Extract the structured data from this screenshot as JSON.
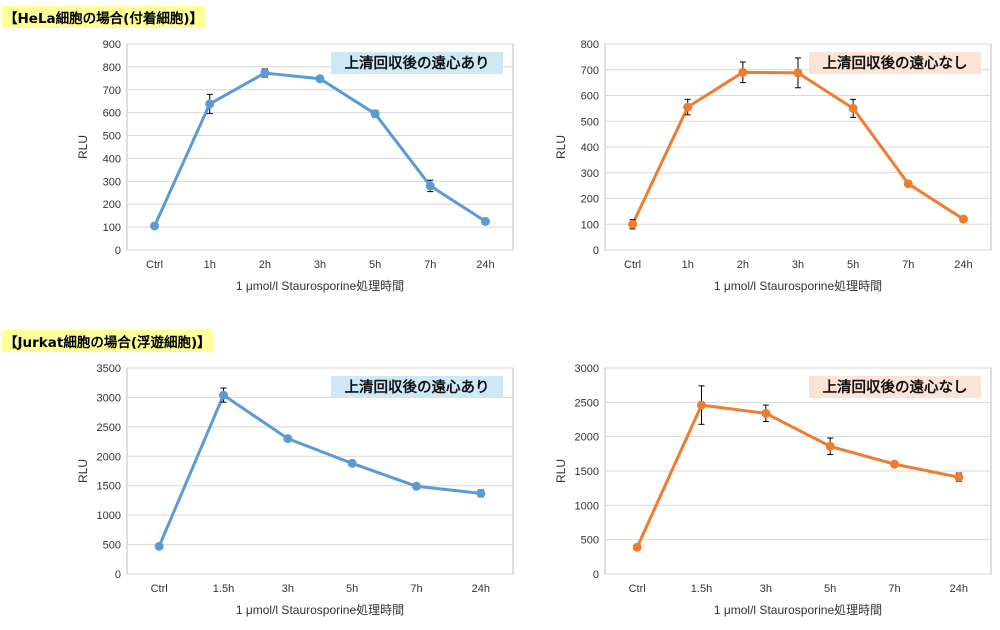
{
  "sections": [
    {
      "title": "【HeLa細胞の場合(付着細胞)】"
    },
    {
      "title": "【Jurkat細胞の場合(浮遊細胞)】"
    }
  ],
  "chart_data": [
    {
      "type": "line",
      "badge": "上清回収後の遠心あり",
      "badge_color": "#cfe8f6",
      "color": "#5b9bd5",
      "categories": [
        "Ctrl",
        "1h",
        "2h",
        "3h",
        "5h",
        "7h",
        "24h"
      ],
      "values": [
        105,
        638,
        773,
        748,
        595,
        280,
        125
      ],
      "errors": [
        0,
        42,
        18,
        10,
        15,
        25,
        5
      ],
      "ylabel": "RLU",
      "xlabel": "1 μmol/l Staurosporine処理時間",
      "ylim": [
        0,
        900
      ],
      "yticks": [
        0,
        100,
        200,
        300,
        400,
        500,
        600,
        700,
        800,
        900
      ]
    },
    {
      "type": "line",
      "badge": "上清回収後の遠心なし",
      "badge_color": "#fbe3d6",
      "color": "#ed7d31",
      "categories": [
        "Ctrl",
        "1h",
        "2h",
        "3h",
        "5h",
        "7h",
        "24h"
      ],
      "values": [
        100,
        555,
        690,
        688,
        550,
        257,
        120
      ],
      "errors": [
        18,
        30,
        40,
        58,
        35,
        8,
        10
      ],
      "ylabel": "RLU",
      "xlabel": "1 μmol/l Staurosporine処理時間",
      "ylim": [
        0,
        800
      ],
      "yticks": [
        0,
        100,
        200,
        300,
        400,
        500,
        600,
        700,
        800
      ]
    },
    {
      "type": "line",
      "badge": "上清回収後の遠心あり",
      "badge_color": "#cfe8f6",
      "color": "#5b9bd5",
      "categories": [
        "Ctrl",
        "1.5h",
        "3h",
        "5h",
        "7h",
        "24h"
      ],
      "values": [
        470,
        3040,
        2300,
        1880,
        1490,
        1370
      ],
      "errors": [
        0,
        120,
        30,
        40,
        35,
        60
      ],
      "ylabel": "RLU",
      "xlabel": "1 μmol/l Staurosporine処理時間",
      "ylim": [
        0,
        3500
      ],
      "yticks": [
        0,
        500,
        1000,
        1500,
        2000,
        2500,
        3000,
        3500
      ]
    },
    {
      "type": "line",
      "badge": "上清回収後の遠心なし",
      "badge_color": "#fbe3d6",
      "color": "#ed7d31",
      "categories": [
        "Ctrl",
        "1.5h",
        "3h",
        "5h",
        "7h",
        "24h"
      ],
      "values": [
        390,
        2460,
        2340,
        1860,
        1600,
        1410
      ],
      "errors": [
        0,
        280,
        120,
        120,
        30,
        60
      ],
      "ylabel": "RLU",
      "xlabel": "1 μmol/l Staurosporine処理時間",
      "ylim": [
        0,
        3000
      ],
      "yticks": [
        0,
        500,
        1000,
        1500,
        2000,
        2500,
        3000
      ]
    }
  ]
}
